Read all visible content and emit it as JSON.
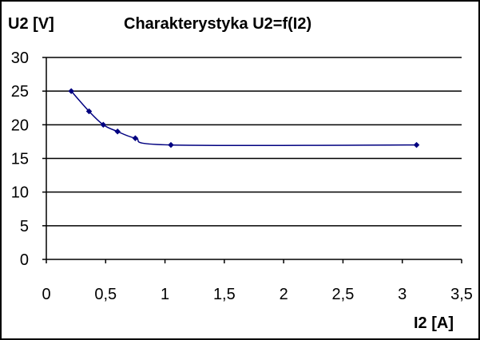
{
  "chart_data": {
    "type": "line",
    "title": "Charakterystyka U2=f(I2)",
    "ylabel": "U2 [V]",
    "xlabel": "I2 [A]",
    "xlim": [
      0,
      3.5
    ],
    "ylim": [
      0,
      30
    ],
    "grid": "horizontal",
    "x_ticks": [
      0,
      0.5,
      1,
      1.5,
      2,
      2.5,
      3,
      3.5
    ],
    "x_tick_labels": [
      "0",
      "0,5",
      "1",
      "1,5",
      "2",
      "2,5",
      "3",
      "3,5"
    ],
    "y_ticks": [
      0,
      5,
      10,
      15,
      20,
      25,
      30
    ],
    "y_tick_labels": [
      "0",
      "5",
      "10",
      "15",
      "20",
      "25",
      "30"
    ],
    "series": [
      {
        "color": "#000080",
        "smooth": true,
        "points": [
          {
            "x": 0.21,
            "y": 25
          },
          {
            "x": 0.36,
            "y": 22
          },
          {
            "x": 0.48,
            "y": 20
          },
          {
            "x": 0.6,
            "y": 19
          },
          {
            "x": 0.75,
            "y": 18
          },
          {
            "x": 1.05,
            "y": 17
          },
          {
            "x": 3.12,
            "y": 17
          }
        ]
      }
    ]
  }
}
